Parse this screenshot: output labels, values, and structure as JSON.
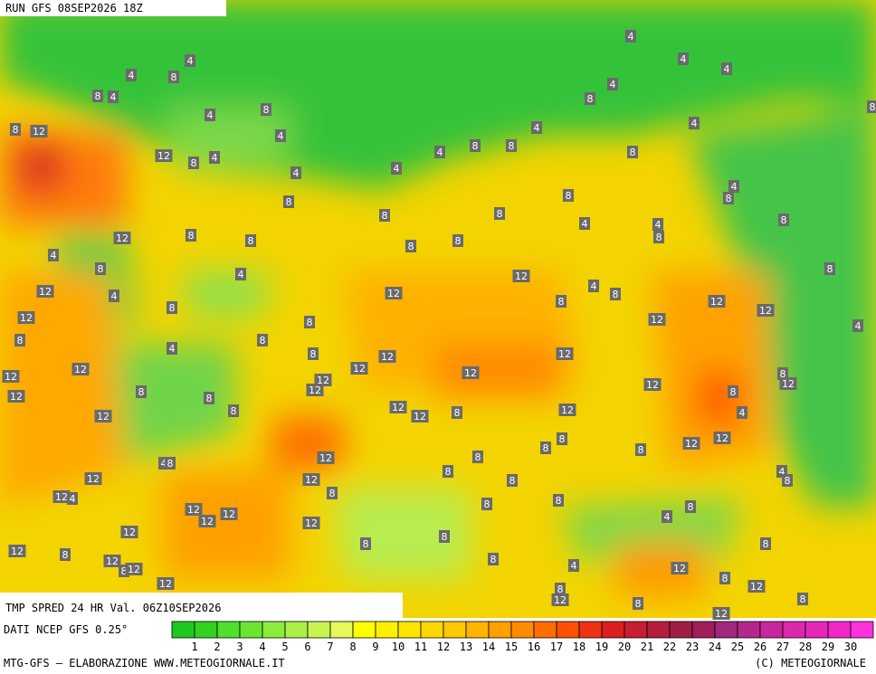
{
  "header": {
    "run": "RUN GFS 08SEP2026 18Z"
  },
  "map": {
    "title": "TMP SPRED 24 HR Val. 06Z10SEP2026",
    "contour_labels": [
      4,
      4,
      4,
      4,
      4,
      8,
      4,
      8,
      4,
      8,
      4,
      8,
      8,
      12,
      4,
      8,
      4,
      4,
      8,
      8,
      12,
      8,
      4,
      4,
      8,
      4,
      4,
      8,
      4,
      8,
      8,
      8,
      8,
      4,
      4,
      8,
      8,
      12,
      8,
      8,
      8,
      8,
      4,
      8,
      12,
      8,
      4,
      4,
      8,
      8,
      12,
      4,
      12,
      12,
      12,
      8,
      12,
      12,
      8,
      4,
      8,
      8,
      4,
      8,
      12,
      12,
      12,
      12,
      12,
      12,
      12,
      12,
      8,
      12,
      12,
      8,
      12,
      8,
      8,
      12,
      12,
      8,
      12,
      8,
      12,
      4,
      12,
      12,
      8,
      8,
      8,
      12,
      8,
      4,
      8,
      12,
      12,
      8,
      4,
      8,
      8,
      12,
      4,
      8,
      8,
      8,
      12,
      12,
      12,
      12,
      4,
      8,
      12,
      8,
      8,
      8,
      12,
      8,
      12,
      8,
      12,
      8,
      4,
      12,
      8,
      12,
      12,
      8,
      12,
      8,
      8,
      12
    ],
    "source": "DATI NCEP GFS 0.25°",
    "credit": "MTG-GFS — ELABORAZIONE WWW.METEOGIORNALE.IT",
    "copyright": "(C) METEOGIORNALE"
  },
  "legend": {
    "values": [
      1,
      2,
      3,
      4,
      5,
      6,
      7,
      8,
      9,
      10,
      11,
      12,
      13,
      14,
      15,
      16,
      17,
      18,
      19,
      20,
      21,
      22,
      23,
      24,
      25,
      26,
      27,
      28,
      29,
      30
    ],
    "colors": [
      "#1ec81e",
      "#32d21e",
      "#4ee02a",
      "#6ae632",
      "#8cec3c",
      "#aaf046",
      "#c8f450",
      "#e6f85a",
      "#ffff00",
      "#fff000",
      "#ffe600",
      "#ffd700",
      "#ffc800",
      "#ffb400",
      "#ffa000",
      "#ff8c00",
      "#ff6e00",
      "#ff5000",
      "#f03214",
      "#dc1e1e",
      "#c81e32",
      "#b41e3c",
      "#a01e46",
      "#a01e5a",
      "#a0287d",
      "#b4288c",
      "#c8289b",
      "#dc28aa",
      "#e628b9",
      "#f028c8",
      "#ff32dc"
    ]
  }
}
